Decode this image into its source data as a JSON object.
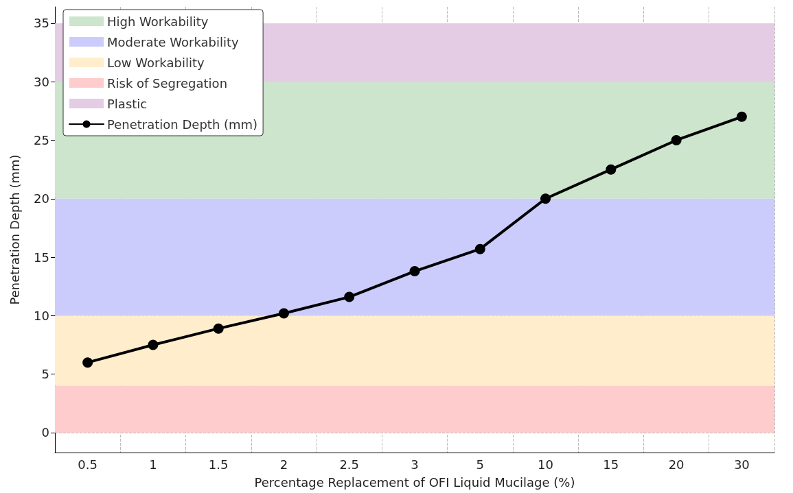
{
  "chart_data": {
    "type": "line",
    "xlabel": "Percentage Replacement of OFI Liquid Mucilage (%)",
    "ylabel": "Penetration Depth (mm)",
    "categories": [
      "0.5",
      "1",
      "1.5",
      "2",
      "2.5",
      "3",
      "5",
      "10",
      "15",
      "20",
      "30"
    ],
    "series": [
      {
        "name": "Penetration Depth (mm)",
        "color": "#000000",
        "values": [
          6,
          7.5,
          8.9,
          10.2,
          11.6,
          13.8,
          15.7,
          20,
          22.5,
          25,
          27
        ]
      }
    ],
    "bands": [
      {
        "axis": "y",
        "from": 20,
        "to": 30,
        "label": "High Workability",
        "color": "#cce5cc"
      },
      {
        "axis": "y",
        "from": 10,
        "to": 20,
        "label": "Moderate Workability",
        "color": "#ccccfc"
      },
      {
        "axis": "y",
        "from": 4,
        "to": 10,
        "label": "Low Workability",
        "color": "#ffedcc"
      },
      {
        "axis": "y",
        "from": 0,
        "to": 4,
        "label": "Risk of Segregation",
        "color": "#fecccc"
      },
      {
        "axis": "y",
        "from": 30,
        "to": 35,
        "label": "Plastic",
        "color": "#e5cce5"
      }
    ],
    "ylim": [
      -1.7,
      36.4
    ],
    "yticks": [
      0,
      5,
      10,
      15,
      20,
      25,
      30,
      35
    ],
    "grid": true,
    "legend": "top left",
    "marker": "circle",
    "line_style": "solid"
  }
}
